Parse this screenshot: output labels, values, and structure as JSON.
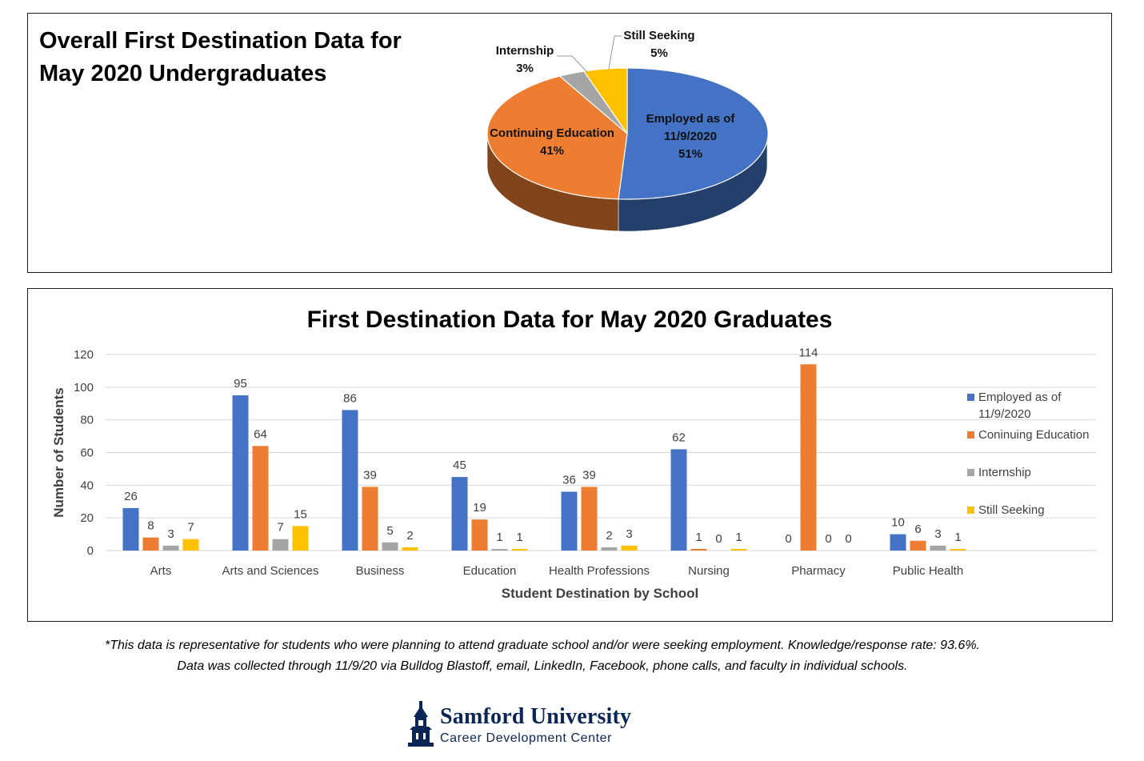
{
  "pie_panel": {
    "title": "Overall First Destination Data for\nMay 2020 Undergraduates"
  },
  "bar_panel": {},
  "footnotes": {
    "line1": "*This data is representative for students who were planning to attend graduate school and/or were seeking employment. Knowledge/response rate: 93.6%.",
    "line2": "Data was collected through 11/9/20 via Bulldog Blastoff, email, LinkedIn, Facebook, phone calls, and faculty in individual schools."
  },
  "logo": {
    "name": "Samford University",
    "subtitle": "Career Development Center"
  },
  "colors": {
    "blue": "#4472C4",
    "orange": "#ED7D31",
    "gray": "#A5A5A5",
    "yellow": "#FFC000",
    "navy": "#0b2554"
  },
  "chart_data": [
    {
      "type": "pie",
      "title": "Overall First Destination Data for May 2020 Undergraduates",
      "slices": [
        {
          "label": "Employed as of 11/9/2020",
          "percent_label": "51%",
          "value": 51,
          "color": "#4472C4"
        },
        {
          "label": "Continuing Education",
          "percent_label": "41%",
          "value": 41,
          "color": "#ED7D31"
        },
        {
          "label": "Internship",
          "percent_label": "3%",
          "value": 3,
          "color": "#A5A5A5"
        },
        {
          "label": "Still Seeking",
          "percent_label": "5%",
          "value": 5,
          "color": "#FFC000"
        }
      ]
    },
    {
      "type": "bar",
      "title": "First Destination Data for May 2020 Graduates",
      "xlabel": "Student Destination by School",
      "ylabel": "Number of Students",
      "ylim": [
        0,
        120
      ],
      "yticks": [
        0,
        20,
        40,
        60,
        80,
        100,
        120
      ],
      "grid": true,
      "legend": "right",
      "categories": [
        "Arts",
        "Arts and Sciences",
        "Business",
        "Education",
        "Health Professions",
        "Nursing",
        "Pharmacy",
        "Public Health"
      ],
      "series": [
        {
          "name": "Employed as of 11/9/2020",
          "color": "#4472C4",
          "values": [
            26,
            95,
            86,
            45,
            36,
            62,
            0,
            10
          ]
        },
        {
          "name": "Coninuing Education",
          "color": "#ED7D31",
          "values": [
            8,
            64,
            39,
            19,
            39,
            1,
            114,
            6
          ]
        },
        {
          "name": "Internship",
          "color": "#A5A5A5",
          "values": [
            3,
            7,
            5,
            1,
            2,
            0,
            0,
            3
          ]
        },
        {
          "name": "Still Seeking",
          "color": "#FFC000",
          "values": [
            7,
            15,
            2,
            1,
            3,
            1,
            0,
            1
          ]
        }
      ],
      "legend_entries": [
        [
          "Employed as of",
          "11/9/2020"
        ],
        [
          "Coninuing Education"
        ],
        [
          "Internship"
        ],
        [
          "Still Seeking"
        ]
      ]
    }
  ]
}
